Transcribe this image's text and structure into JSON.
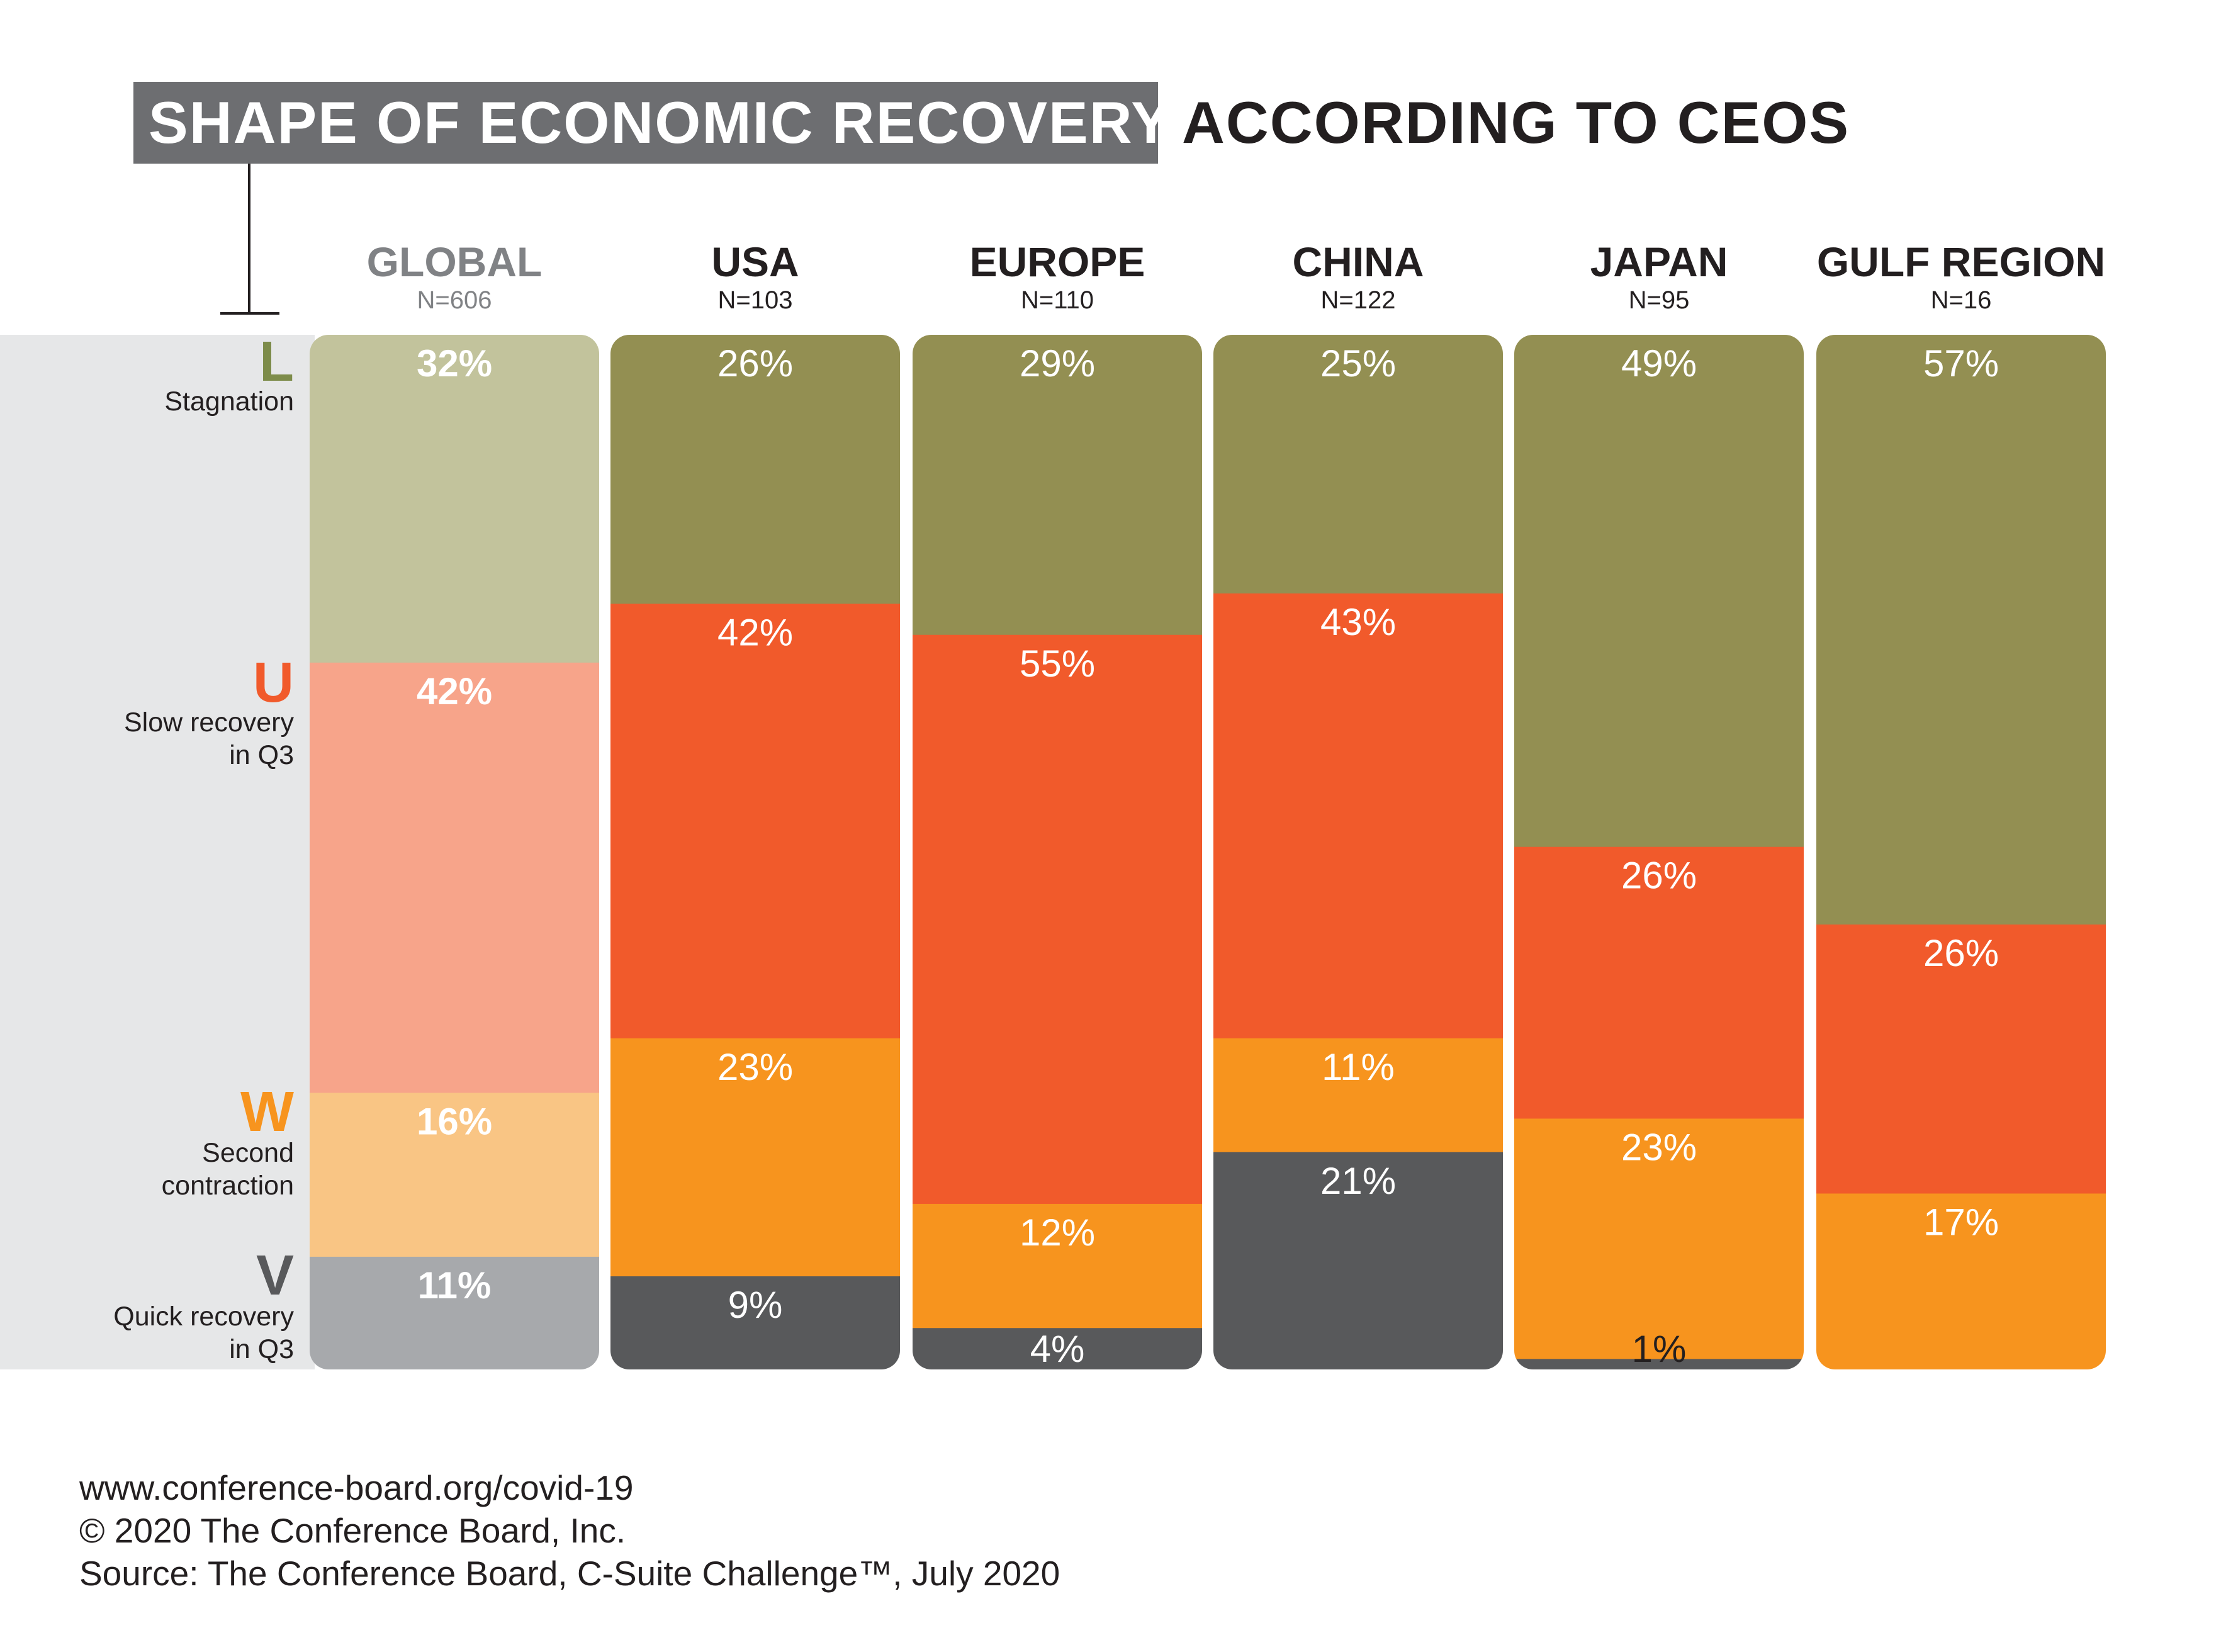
{
  "title": {
    "main": "SHAPE OF ECONOMIC RECOVERY",
    "sub": "ACCORDING TO CEOS"
  },
  "shapes": [
    {
      "letter": "L",
      "desc": "Stagnation",
      "color": "#7d8c4a"
    },
    {
      "letter": "U",
      "desc": "Slow recovery\nin Q3",
      "color": "#f15a2b"
    },
    {
      "letter": "W",
      "desc": "Second\ncontraction",
      "color": "#f7941e"
    },
    {
      "letter": "V",
      "desc": "Quick recovery\nin Q3",
      "color": "#58595b"
    }
  ],
  "chart_data": {
    "type": "bar",
    "stacked": true,
    "title": "SHAPE OF ECONOMIC RECOVERY ACCORDING TO CEOS",
    "categories": [
      "GLOBAL",
      "USA",
      "EUROPE",
      "CHINA",
      "JAPAN",
      "GULF REGION"
    ],
    "sample_sizes": [
      "N=606",
      "N=103",
      "N=110",
      "N=122",
      "N=95",
      "N=16"
    ],
    "unit": "%",
    "series": [
      {
        "name": "L",
        "values": [
          32,
          26,
          29,
          25,
          49,
          57
        ],
        "labels": [
          "32%",
          "26%",
          "29%",
          "25%",
          "49%",
          "57%"
        ],
        "color": "#938f52",
        "global_color": "#c2c39c"
      },
      {
        "name": "U",
        "values": [
          42,
          42,
          55,
          43,
          26,
          26
        ],
        "labels": [
          "42%",
          "42%",
          "55%",
          "43%",
          "26%",
          "26%"
        ],
        "color": "#f15a2b",
        "global_color": "#f7a48a"
      },
      {
        "name": "W",
        "values": [
          16,
          23,
          12,
          11,
          23,
          17
        ],
        "labels": [
          "16%",
          "23%",
          "12%",
          "11%",
          "23%",
          "17%"
        ],
        "color": "#f7941e",
        "global_color": "#f9c584"
      },
      {
        "name": "V",
        "values": [
          11,
          9,
          4,
          21,
          1,
          0
        ],
        "labels": [
          "11%",
          "9%",
          "4%",
          "21%",
          "1%",
          ""
        ],
        "color": "#58595b",
        "global_color": "#a7a9ac"
      }
    ],
    "legend": "left"
  },
  "footer": {
    "url": "www.conference-board.org/covid-19",
    "copyright": "© 2020 The Conference Board, Inc.",
    "source": "Source: The Conference Board, C-Suite Challenge™, July 2020"
  }
}
